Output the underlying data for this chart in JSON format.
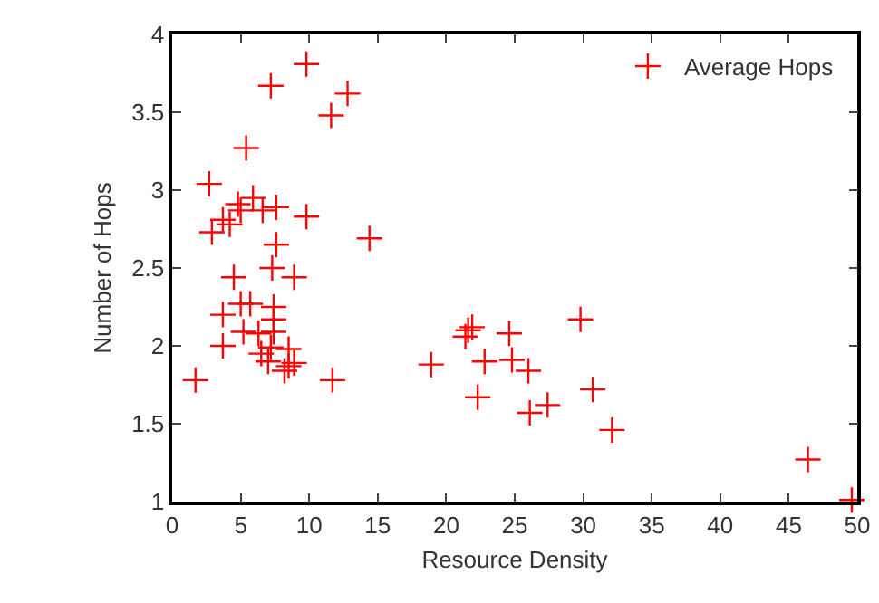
{
  "chart_data": {
    "type": "scatter",
    "xlabel": "Resource Density",
    "ylabel": "Number of Hops",
    "x": [
      9.8,
      7.2,
      12.8,
      11.6,
      5.4,
      2.7,
      5.9,
      4.8,
      5.0,
      6.6,
      7.6,
      9.8,
      3.7,
      4.2,
      2.9,
      14.4,
      7.6,
      7.3,
      4.5,
      8.9,
      5.0,
      5.7,
      7.4,
      3.7,
      7.4,
      5.2,
      6.3,
      7.4,
      3.7,
      7.2,
      6.5,
      8.5,
      7.0,
      8.9,
      8.5,
      8.2,
      1.7,
      11.7,
      18.9,
      21.4,
      21.6,
      21.9,
      24.6,
      22.8,
      24.8,
      26.0,
      22.3,
      26.1,
      27.4,
      29.8,
      30.7,
      32.1,
      46.4,
      49.6
    ],
    "series": [
      {
        "name": "Average Hops",
        "color": "#ff0000",
        "values": [
          3.81,
          3.67,
          3.62,
          3.48,
          3.27,
          3.04,
          2.95,
          2.91,
          2.87,
          2.87,
          2.89,
          2.83,
          2.81,
          2.78,
          2.73,
          2.69,
          2.65,
          2.5,
          2.44,
          2.44,
          2.27,
          2.27,
          2.25,
          2.2,
          2.17,
          2.09,
          2.08,
          2.09,
          2.0,
          1.99,
          1.95,
          1.98,
          1.9,
          1.89,
          1.87,
          1.84,
          1.78,
          1.78,
          1.88,
          2.06,
          2.1,
          2.12,
          2.08,
          1.9,
          1.91,
          1.84,
          1.67,
          1.57,
          1.62,
          2.17,
          1.72,
          1.46,
          1.27,
          1.01
        ]
      }
    ],
    "xlim": [
      0,
      50
    ],
    "xticks": [
      0,
      5,
      10,
      15,
      20,
      25,
      30,
      35,
      40,
      45,
      50
    ],
    "ylim": [
      1,
      4
    ],
    "yticks": [
      1,
      1.5,
      2,
      2.5,
      3,
      3.5,
      4
    ],
    "marker": "cross",
    "legend": "top right",
    "grid": false
  }
}
